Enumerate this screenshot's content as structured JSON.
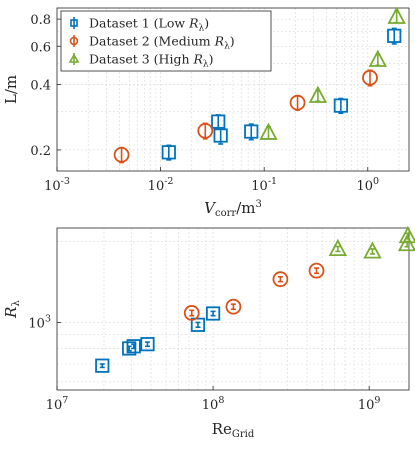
{
  "chart_data": [
    {
      "type": "scatter",
      "xlabel_main": "V",
      "xlabel_sub": "corr",
      "xlabel_unit": "/m",
      "xlabel_sup": "3",
      "ylabel": "L/m",
      "xscale": "log",
      "yscale": "log",
      "xlim": [
        0.001,
        2.5
      ],
      "ylim": [
        0.16,
        0.9
      ],
      "xticks": [
        0.001,
        0.01,
        0.1,
        1
      ],
      "xtick_labels": [
        [
          "10",
          "-3"
        ],
        [
          "10",
          "-2"
        ],
        [
          "10",
          "-1"
        ],
        [
          "10",
          "0"
        ]
      ],
      "yticks": [
        0.2,
        0.4,
        0.6,
        0.8
      ],
      "ytick_labels": [
        "0.2",
        "0.4",
        "0.6",
        "0.8"
      ],
      "grid": true,
      "legend_position": "top-left",
      "series": [
        {
          "name": "Dataset 1 (Low ",
          "name_sym": "R",
          "name_sub": "λ",
          "name_tail": ")",
          "marker": "square",
          "color": "#0072BD",
          "x": [
            0.012,
            0.036,
            0.038,
            0.075,
            0.55,
            1.8
          ],
          "y": [
            0.195,
            0.27,
            0.233,
            0.243,
            0.32,
            0.67
          ],
          "err": [
            0.015,
            0.02,
            0.02,
            0.02,
            0.025,
            0.055
          ]
        },
        {
          "name": "Dataset 2 (Medium ",
          "name_sym": "R",
          "name_sub": "λ",
          "name_tail": ")",
          "marker": "circle",
          "color": "#D95319",
          "x": [
            0.0042,
            0.027,
            0.21,
            1.05
          ],
          "y": [
            0.19,
            0.245,
            0.33,
            0.43
          ],
          "err": [
            0.015,
            0.02,
            0.025,
            0.035
          ]
        },
        {
          "name": "Dataset 3 (High ",
          "name_sym": "R",
          "name_sub": "λ",
          "name_tail": ")",
          "marker": "triangle",
          "color": "#77AC30",
          "x": [
            0.11,
            0.33,
            1.25,
            1.9
          ],
          "y": [
            0.24,
            0.355,
            0.52,
            0.82
          ],
          "err": [
            0.015,
            0.02,
            0.03,
            0.05
          ]
        }
      ]
    },
    {
      "type": "scatter",
      "xlabel_main": "Re",
      "xlabel_sub": "Grid",
      "ylabel_main": "R",
      "ylabel_sub": "λ",
      "xscale": "log",
      "yscale": "log",
      "xlim": [
        10000000,
        1800000000
      ],
      "ylim": [
        560,
        2250
      ],
      "xticks": [
        10000000,
        100000000,
        1000000000
      ],
      "xtick_labels": [
        [
          "10",
          "7"
        ],
        [
          "10",
          "8"
        ],
        [
          "10",
          "9"
        ]
      ],
      "yticks": [
        1000
      ],
      "ytick_labels": [
        [
          "10",
          "3"
        ]
      ],
      "grid": true,
      "series": [
        {
          "name": "Dataset 1 (Low Rλ)",
          "marker": "square",
          "color": "#0072BD",
          "x": [
            19500000,
            29000000,
            31000000,
            38000000,
            80000000,
            100000000
          ],
          "y": [
            690,
            800,
            815,
            830,
            980,
            1080
          ],
          "err": [
            10,
            15,
            15,
            15,
            20,
            20
          ]
        },
        {
          "name": "Dataset 2 (Medium Rλ)",
          "marker": "circle",
          "color": "#D95319",
          "x": [
            73000000,
            135000000,
            270000000,
            460000000
          ],
          "y": [
            1085,
            1145,
            1450,
            1560
          ],
          "err": [
            25,
            25,
            30,
            35
          ]
        },
        {
          "name": "Dataset 3 (High Rλ)",
          "marker": "triangle",
          "color": "#77AC30",
          "x": [
            630000000,
            1050000000,
            1750000000,
            1770000000
          ],
          "y": [
            1880,
            1840,
            1960,
            2100
          ],
          "err": [
            40,
            40,
            45,
            50
          ]
        }
      ]
    }
  ]
}
